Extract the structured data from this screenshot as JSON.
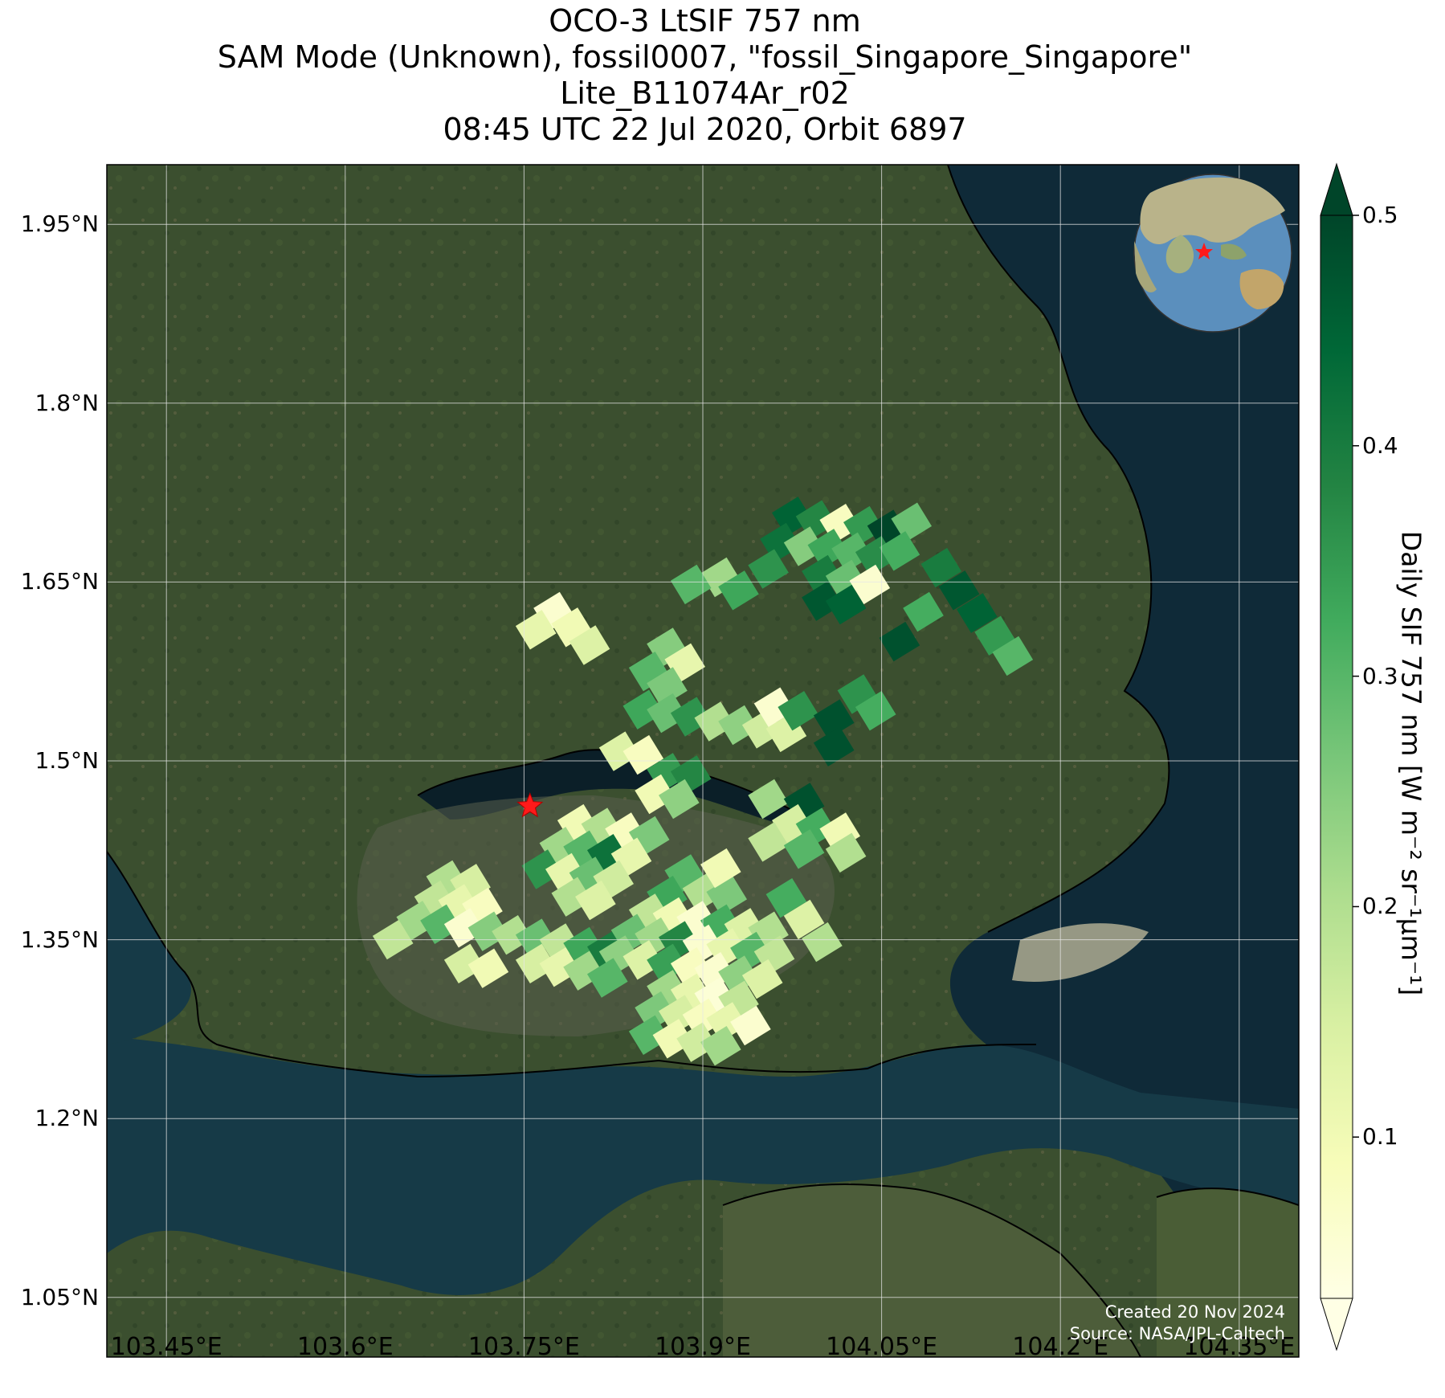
{
  "title_lines": [
    "OCO-3 LtSIF 757 nm",
    "SAM Mode (Unknown), fossil0007, \"fossil_Singapore_Singapore\"",
    "Lite_B11074Ar_r02",
    "08:45 UTC 22 Jul 2020, Orbit 6897"
  ],
  "axes": {
    "lat_labels": [
      "1.95°N",
      "1.8°N",
      "1.65°N",
      "1.5°N",
      "1.35°N",
      "1.2°N",
      "1.05°N"
    ],
    "lat_values": [
      1.95,
      1.8,
      1.65,
      1.5,
      1.35,
      1.2,
      1.05
    ],
    "lon_labels": [
      "103.45°E",
      "103.6°E",
      "103.75°E",
      "103.9°E",
      "104.05°E",
      "104.2°E",
      "104.35°E"
    ],
    "lon_values": [
      103.45,
      103.6,
      103.75,
      103.9,
      104.05,
      104.2,
      104.35
    ],
    "lat_range": [
      1.0,
      2.0
    ],
    "lon_range": [
      103.4,
      104.4
    ],
    "grid": true
  },
  "colorbar": {
    "label": "Daily SIF 757 nm [W m⁻² sr⁻¹μm⁻¹]",
    "ticks": [
      "0.1",
      "0.2",
      "0.3",
      "0.4",
      "0.5"
    ],
    "tick_values": [
      0.1,
      0.2,
      0.3,
      0.4,
      0.5
    ],
    "range": [
      0.03,
      0.5
    ],
    "colormap": "YlGn",
    "extend": "both"
  },
  "target_site": {
    "lon": 103.755,
    "lat": 1.462,
    "marker": "red-star"
  },
  "credit": [
    "Created 20 Nov 2024",
    "Source: NASA/JPL-Caltech"
  ],
  "colors": {
    "star": "#ff1a1a",
    "land": "#3b4f2f",
    "sea": "#0f2a38",
    "coastline": "#000000"
  },
  "sif_soundings": [
    {
      "lon": 103.975,
      "lat": 1.705,
      "v": 0.45
    },
    {
      "lon": 103.995,
      "lat": 1.702,
      "v": 0.38
    },
    {
      "lon": 104.015,
      "lat": 1.699,
      "v": 0.08
    },
    {
      "lon": 104.035,
      "lat": 1.697,
      "v": 0.35
    },
    {
      "lon": 104.055,
      "lat": 1.694,
      "v": 0.5
    },
    {
      "lon": 104.075,
      "lat": 1.7,
      "v": 0.28
    },
    {
      "lon": 103.965,
      "lat": 1.683,
      "v": 0.42
    },
    {
      "lon": 103.985,
      "lat": 1.68,
      "v": 0.25
    },
    {
      "lon": 104.005,
      "lat": 1.678,
      "v": 0.33
    },
    {
      "lon": 104.025,
      "lat": 1.675,
      "v": 0.3
    },
    {
      "lon": 104.045,
      "lat": 1.672,
      "v": 0.37
    },
    {
      "lon": 104.065,
      "lat": 1.676,
      "v": 0.32
    },
    {
      "lon": 103.955,
      "lat": 1.661,
      "v": 0.36
    },
    {
      "lon": 104.0,
      "lat": 1.656,
      "v": 0.4
    },
    {
      "lon": 104.02,
      "lat": 1.652,
      "v": 0.28
    },
    {
      "lon": 104.04,
      "lat": 1.648,
      "v": 0.06
    },
    {
      "lon": 104.0,
      "lat": 1.634,
      "v": 0.47
    },
    {
      "lon": 104.02,
      "lat": 1.631,
      "v": 0.45
    },
    {
      "lon": 103.915,
      "lat": 1.654,
      "v": 0.22
    },
    {
      "lon": 103.93,
      "lat": 1.643,
      "v": 0.33
    },
    {
      "lon": 103.89,
      "lat": 1.648,
      "v": 0.3
    },
    {
      "lon": 104.1,
      "lat": 1.662,
      "v": 0.4
    },
    {
      "lon": 104.115,
      "lat": 1.643,
      "v": 0.47
    },
    {
      "lon": 104.13,
      "lat": 1.624,
      "v": 0.45
    },
    {
      "lon": 104.145,
      "lat": 1.605,
      "v": 0.35
    },
    {
      "lon": 104.16,
      "lat": 1.588,
      "v": 0.3
    },
    {
      "lon": 104.085,
      "lat": 1.625,
      "v": 0.32
    },
    {
      "lon": 104.065,
      "lat": 1.6,
      "v": 0.48
    },
    {
      "lon": 103.775,
      "lat": 1.625,
      "v": 0.06
    },
    {
      "lon": 103.79,
      "lat": 1.612,
      "v": 0.1
    },
    {
      "lon": 103.76,
      "lat": 1.61,
      "v": 0.12
    },
    {
      "lon": 103.805,
      "lat": 1.597,
      "v": 0.14
    },
    {
      "lon": 103.87,
      "lat": 1.595,
      "v": 0.25
    },
    {
      "lon": 103.885,
      "lat": 1.582,
      "v": 0.12
    },
    {
      "lon": 103.855,
      "lat": 1.575,
      "v": 0.3
    },
    {
      "lon": 103.87,
      "lat": 1.562,
      "v": 0.26
    },
    {
      "lon": 103.85,
      "lat": 1.543,
      "v": 0.33
    },
    {
      "lon": 103.87,
      "lat": 1.54,
      "v": 0.28
    },
    {
      "lon": 103.89,
      "lat": 1.537,
      "v": 0.36
    },
    {
      "lon": 103.91,
      "lat": 1.533,
      "v": 0.2
    },
    {
      "lon": 103.93,
      "lat": 1.53,
      "v": 0.24
    },
    {
      "lon": 103.95,
      "lat": 1.527,
      "v": 0.16
    },
    {
      "lon": 103.97,
      "lat": 1.524,
      "v": 0.14
    },
    {
      "lon": 103.96,
      "lat": 1.545,
      "v": 0.06
    },
    {
      "lon": 103.98,
      "lat": 1.542,
      "v": 0.36
    },
    {
      "lon": 104.03,
      "lat": 1.556,
      "v": 0.36
    },
    {
      "lon": 104.045,
      "lat": 1.542,
      "v": 0.32
    },
    {
      "lon": 104.01,
      "lat": 1.535,
      "v": 0.48
    },
    {
      "lon": 104.01,
      "lat": 1.512,
      "v": 0.48
    },
    {
      "lon": 103.83,
      "lat": 1.508,
      "v": 0.14
    },
    {
      "lon": 103.85,
      "lat": 1.505,
      "v": 0.08
    },
    {
      "lon": 103.87,
      "lat": 1.49,
      "v": 0.35
    },
    {
      "lon": 103.89,
      "lat": 1.488,
      "v": 0.38
    },
    {
      "lon": 103.86,
      "lat": 1.472,
      "v": 0.1
    },
    {
      "lon": 103.88,
      "lat": 1.468,
      "v": 0.24
    },
    {
      "lon": 103.955,
      "lat": 1.468,
      "v": 0.22
    },
    {
      "lon": 103.985,
      "lat": 1.465,
      "v": 0.48
    },
    {
      "lon": 103.975,
      "lat": 1.447,
      "v": 0.15
    },
    {
      "lon": 103.995,
      "lat": 1.444,
      "v": 0.32
    },
    {
      "lon": 104.015,
      "lat": 1.44,
      "v": 0.1
    },
    {
      "lon": 103.955,
      "lat": 1.432,
      "v": 0.18
    },
    {
      "lon": 103.985,
      "lat": 1.426,
      "v": 0.3
    },
    {
      "lon": 104.02,
      "lat": 1.423,
      "v": 0.2
    },
    {
      "lon": 103.795,
      "lat": 1.447,
      "v": 0.1
    },
    {
      "lon": 103.815,
      "lat": 1.444,
      "v": 0.2
    },
    {
      "lon": 103.835,
      "lat": 1.44,
      "v": 0.08
    },
    {
      "lon": 103.855,
      "lat": 1.437,
      "v": 0.26
    },
    {
      "lon": 103.78,
      "lat": 1.428,
      "v": 0.22
    },
    {
      "lon": 103.8,
      "lat": 1.425,
      "v": 0.3
    },
    {
      "lon": 103.82,
      "lat": 1.422,
      "v": 0.42
    },
    {
      "lon": 103.84,
      "lat": 1.419,
      "v": 0.12
    },
    {
      "lon": 103.765,
      "lat": 1.409,
      "v": 0.36
    },
    {
      "lon": 103.785,
      "lat": 1.406,
      "v": 0.12
    },
    {
      "lon": 103.805,
      "lat": 1.403,
      "v": 0.28
    },
    {
      "lon": 103.825,
      "lat": 1.4,
      "v": 0.16
    },
    {
      "lon": 103.79,
      "lat": 1.386,
      "v": 0.2
    },
    {
      "lon": 103.81,
      "lat": 1.383,
      "v": 0.14
    },
    {
      "lon": 103.685,
      "lat": 1.4,
      "v": 0.2
    },
    {
      "lon": 103.705,
      "lat": 1.397,
      "v": 0.15
    },
    {
      "lon": 103.675,
      "lat": 1.383,
      "v": 0.18
    },
    {
      "lon": 103.695,
      "lat": 1.38,
      "v": 0.12
    },
    {
      "lon": 103.715,
      "lat": 1.377,
      "v": 0.08
    },
    {
      "lon": 103.66,
      "lat": 1.366,
      "v": 0.22
    },
    {
      "lon": 103.68,
      "lat": 1.363,
      "v": 0.3
    },
    {
      "lon": 103.7,
      "lat": 1.36,
      "v": 0.06
    },
    {
      "lon": 103.72,
      "lat": 1.357,
      "v": 0.25
    },
    {
      "lon": 103.74,
      "lat": 1.354,
      "v": 0.2
    },
    {
      "lon": 103.76,
      "lat": 1.351,
      "v": 0.28
    },
    {
      "lon": 103.78,
      "lat": 1.347,
      "v": 0.18
    },
    {
      "lon": 103.8,
      "lat": 1.344,
      "v": 0.33
    },
    {
      "lon": 103.82,
      "lat": 1.341,
      "v": 0.4
    },
    {
      "lon": 103.76,
      "lat": 1.33,
      "v": 0.15
    },
    {
      "lon": 103.78,
      "lat": 1.327,
      "v": 0.12
    },
    {
      "lon": 103.8,
      "lat": 1.324,
      "v": 0.22
    },
    {
      "lon": 103.64,
      "lat": 1.35,
      "v": 0.18
    },
    {
      "lon": 103.7,
      "lat": 1.33,
      "v": 0.15
    },
    {
      "lon": 103.72,
      "lat": 1.326,
      "v": 0.1
    },
    {
      "lon": 103.885,
      "lat": 1.405,
      "v": 0.3
    },
    {
      "lon": 103.9,
      "lat": 1.39,
      "v": 0.2
    },
    {
      "lon": 103.92,
      "lat": 1.387,
      "v": 0.26
    },
    {
      "lon": 103.915,
      "lat": 1.41,
      "v": 0.1
    },
    {
      "lon": 103.87,
      "lat": 1.387,
      "v": 0.33
    },
    {
      "lon": 103.855,
      "lat": 1.372,
      "v": 0.18
    },
    {
      "lon": 103.875,
      "lat": 1.369,
      "v": 0.1
    },
    {
      "lon": 103.895,
      "lat": 1.366,
      "v": 0.06
    },
    {
      "lon": 103.915,
      "lat": 1.363,
      "v": 0.32
    },
    {
      "lon": 103.935,
      "lat": 1.36,
      "v": 0.14
    },
    {
      "lon": 103.955,
      "lat": 1.357,
      "v": 0.2
    },
    {
      "lon": 103.84,
      "lat": 1.355,
      "v": 0.28
    },
    {
      "lon": 103.86,
      "lat": 1.352,
      "v": 0.22
    },
    {
      "lon": 103.88,
      "lat": 1.349,
      "v": 0.38
    },
    {
      "lon": 103.9,
      "lat": 1.346,
      "v": 0.06
    },
    {
      "lon": 103.92,
      "lat": 1.343,
      "v": 0.12
    },
    {
      "lon": 103.94,
      "lat": 1.34,
      "v": 0.3
    },
    {
      "lon": 103.96,
      "lat": 1.337,
      "v": 0.18
    },
    {
      "lon": 103.83,
      "lat": 1.337,
      "v": 0.24
    },
    {
      "lon": 103.85,
      "lat": 1.333,
      "v": 0.14
    },
    {
      "lon": 103.87,
      "lat": 1.33,
      "v": 0.34
    },
    {
      "lon": 103.89,
      "lat": 1.327,
      "v": 0.08
    },
    {
      "lon": 103.91,
      "lat": 1.323,
      "v": 0.06
    },
    {
      "lon": 103.93,
      "lat": 1.32,
      "v": 0.24
    },
    {
      "lon": 103.95,
      "lat": 1.317,
      "v": 0.14
    },
    {
      "lon": 103.82,
      "lat": 1.318,
      "v": 0.3
    },
    {
      "lon": 103.87,
      "lat": 1.308,
      "v": 0.22
    },
    {
      "lon": 103.89,
      "lat": 1.305,
      "v": 0.12
    },
    {
      "lon": 103.91,
      "lat": 1.302,
      "v": 0.05
    },
    {
      "lon": 103.93,
      "lat": 1.299,
      "v": 0.18
    },
    {
      "lon": 103.86,
      "lat": 1.29,
      "v": 0.26
    },
    {
      "lon": 103.88,
      "lat": 1.287,
      "v": 0.15
    },
    {
      "lon": 103.9,
      "lat": 1.284,
      "v": 0.08
    },
    {
      "lon": 103.92,
      "lat": 1.281,
      "v": 0.12
    },
    {
      "lon": 103.94,
      "lat": 1.278,
      "v": 0.06
    },
    {
      "lon": 103.855,
      "lat": 1.27,
      "v": 0.3
    },
    {
      "lon": 103.875,
      "lat": 1.267,
      "v": 0.1
    },
    {
      "lon": 103.895,
      "lat": 1.264,
      "v": 0.16
    },
    {
      "lon": 103.915,
      "lat": 1.261,
      "v": 0.22
    },
    {
      "lon": 103.97,
      "lat": 1.385,
      "v": 0.32
    },
    {
      "lon": 103.985,
      "lat": 1.367,
      "v": 0.14
    },
    {
      "lon": 104.0,
      "lat": 1.348,
      "v": 0.2
    }
  ]
}
